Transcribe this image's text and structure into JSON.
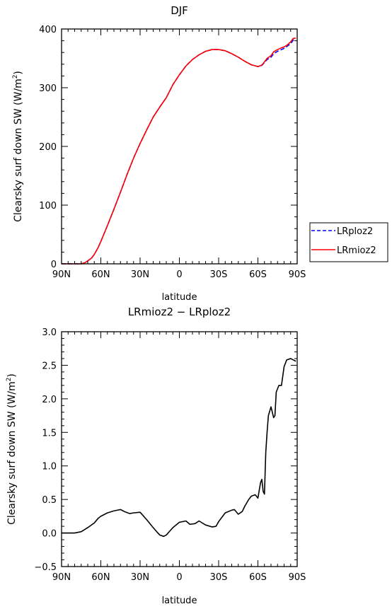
{
  "chart_data": [
    {
      "type": "line",
      "title": "DJF",
      "xlabel": "latitude",
      "ylabel_main": "Clearsky surf down SW (W/m",
      "ylabel_sup": "2",
      "ylabel_close": ")",
      "xlim": [
        90,
        -90
      ],
      "ylim": [
        0,
        400
      ],
      "xticks": [
        90,
        60,
        30,
        0,
        -30,
        -60,
        -90
      ],
      "xtick_labels": [
        "90N",
        "60N",
        "30N",
        "0",
        "30S",
        "60S",
        "90S"
      ],
      "yticks": [
        0,
        100,
        200,
        300,
        400
      ],
      "ytick_labels": [
        "0",
        "100",
        "200",
        "300",
        "400"
      ],
      "legend": [
        "LRploz2",
        "LRmioz2"
      ],
      "legend_placement": "right",
      "series": [
        {
          "name": "LRploz2",
          "color": "#0000ff",
          "dash": "dashed",
          "x": [
            90,
            85,
            80,
            75,
            72,
            70,
            67,
            65,
            62,
            60,
            55,
            50,
            45,
            40,
            35,
            30,
            25,
            20,
            15,
            10,
            5,
            0,
            -5,
            -10,
            -15,
            -20,
            -25,
            -30,
            -35,
            -40,
            -45,
            -50,
            -55,
            -60,
            -63,
            -65,
            -67,
            -70,
            -72,
            -75,
            -78,
            -80,
            -82,
            -85,
            -87,
            -89
          ],
          "y": [
            0,
            0,
            0,
            0,
            2,
            5,
            10,
            16,
            28,
            38,
            65,
            93,
            122,
            152,
            180,
            205,
            228,
            250,
            267,
            283,
            305,
            322,
            337,
            348,
            356,
            362,
            365,
            365,
            363,
            358,
            352,
            345,
            339,
            336,
            338,
            343,
            348,
            352,
            358,
            362,
            365,
            367,
            370,
            375,
            381,
            382
          ]
        },
        {
          "name": "LRmioz2",
          "color": "#ff0000",
          "dash": "solid",
          "x": [
            90,
            85,
            80,
            75,
            72,
            70,
            67,
            65,
            62,
            60,
            55,
            50,
            45,
            40,
            35,
            30,
            25,
            20,
            15,
            10,
            5,
            0,
            -5,
            -10,
            -15,
            -20,
            -25,
            -30,
            -35,
            -40,
            -45,
            -50,
            -55,
            -60,
            -63,
            -65,
            -67,
            -70,
            -72,
            -75,
            -78,
            -80,
            -82,
            -85,
            -87,
            -89
          ],
          "y": [
            0,
            0,
            0,
            0,
            2,
            5,
            10,
            16,
            28,
            38,
            65,
            93,
            122,
            152,
            180,
            205,
            228,
            250,
            267,
            283,
            305,
            322,
            337,
            348,
            356,
            362,
            365,
            365,
            363,
            358,
            352,
            345,
            339,
            336,
            338.5,
            344,
            350,
            354.5,
            361,
            365,
            368,
            369.5,
            372,
            378,
            384,
            384.5
          ]
        }
      ]
    },
    {
      "type": "line",
      "title": "LRmioz2 − LRploz2",
      "xlabel": "latitude",
      "ylabel_main": "Clearsky surf down SW (W/m",
      "ylabel_sup": "2",
      "ylabel_close": ")",
      "xlim": [
        90,
        -90
      ],
      "ylim": [
        -0.5,
        3.0
      ],
      "xticks": [
        90,
        60,
        30,
        0,
        -30,
        -60,
        -90
      ],
      "xtick_labels": [
        "90N",
        "60N",
        "30N",
        "0",
        "30S",
        "60S",
        "90S"
      ],
      "yticks": [
        -0.5,
        0.0,
        0.5,
        1.0,
        1.5,
        2.0,
        2.5,
        3.0
      ],
      "ytick_labels": [
        "−0.5",
        "0.0",
        "0.5",
        "1.0",
        "1.5",
        "2.0",
        "2.5",
        "3.0"
      ],
      "series": [
        {
          "color": "#000000",
          "dash": "solid",
          "x": [
            90,
            80,
            75,
            70,
            65,
            62,
            60,
            55,
            50,
            45,
            42,
            38,
            35,
            30,
            25,
            20,
            15,
            12,
            10,
            5,
            0,
            -5,
            -8,
            -12,
            -15,
            -20,
            -25,
            -28,
            -30,
            -35,
            -40,
            -42,
            -45,
            -48,
            -50,
            -53,
            -55,
            -58,
            -60,
            -62,
            -63,
            -64,
            -65,
            -66,
            -67,
            -68,
            -70,
            -72,
            -73,
            -74,
            -76,
            -78,
            -80,
            -82,
            -85,
            -87,
            -89
          ],
          "y": [
            0,
            0,
            0.02,
            0.08,
            0.15,
            0.22,
            0.25,
            0.3,
            0.33,
            0.35,
            0.32,
            0.29,
            0.3,
            0.31,
            0.2,
            0.08,
            -0.03,
            -0.05,
            -0.03,
            0.08,
            0.16,
            0.18,
            0.13,
            0.14,
            0.18,
            0.12,
            0.09,
            0.1,
            0.17,
            0.3,
            0.34,
            0.35,
            0.28,
            0.32,
            0.4,
            0.5,
            0.55,
            0.57,
            0.52,
            0.75,
            0.8,
            0.62,
            0.58,
            1.2,
            1.5,
            1.75,
            1.88,
            1.72,
            1.75,
            2.1,
            2.2,
            2.2,
            2.48,
            2.58,
            2.6,
            2.58,
            2.56
          ]
        }
      ]
    }
  ]
}
